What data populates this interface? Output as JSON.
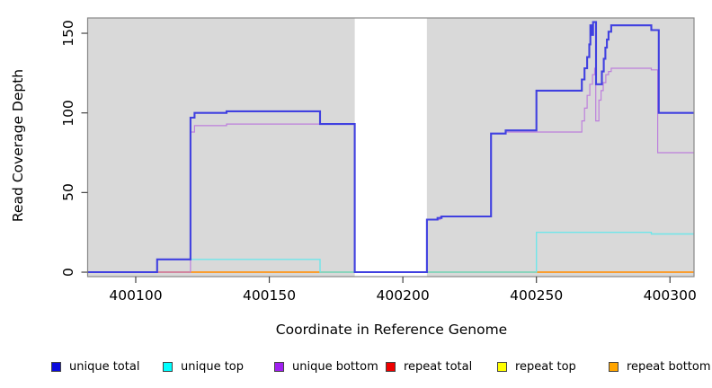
{
  "chart_data": {
    "type": "line",
    "subtype": "step-coverage-plot",
    "title": "",
    "xlabel": "Coordinate in Reference Genome",
    "ylabel": "Read Coverage Depth",
    "xlim": [
      400082,
      400309
    ],
    "ylim": [
      -2.8,
      159.6
    ],
    "x_ticks": [
      400100,
      400150,
      400200,
      400250,
      400300
    ],
    "y_ticks": [
      0,
      50,
      100,
      150
    ],
    "grid": false,
    "plot_bg_color": "#d9d9d9",
    "frame_color": "#888888",
    "tick_color": "#444444",
    "masked_region": {
      "x1": 400182,
      "x2": 400209,
      "color": "#ffffff"
    },
    "series": [
      {
        "name": "repeat total",
        "legend_color": "#ee0000",
        "line_color": "#ee2222",
        "line_width": 1,
        "steps": [
          [
            400082,
            0
          ],
          [
            400309,
            0
          ]
        ]
      },
      {
        "name": "repeat top",
        "legend_color": "#ffff00",
        "line_color": "#f2e522",
        "line_width": 1,
        "steps": [
          [
            400082,
            0
          ],
          [
            400309,
            0
          ]
        ]
      },
      {
        "name": "repeat bottom",
        "legend_color": "#ffa500",
        "line_color": "#ff9517",
        "line_width": 1.8,
        "steps": [
          [
            400082,
            0
          ],
          [
            400309,
            0
          ]
        ]
      },
      {
        "name": "unique top",
        "legend_color": "#00ffff",
        "line_color": "#6fe6ea",
        "line_width": 1.4,
        "steps": [
          [
            400082,
            0
          ],
          [
            400108,
            8
          ],
          [
            400169,
            0
          ],
          [
            400250,
            25
          ],
          [
            400293,
            24
          ],
          [
            400309,
            24
          ]
        ]
      },
      {
        "name": "unique bottom",
        "legend_color": "#a020f0",
        "line_color": "#bd7fdc",
        "line_width": 1.2,
        "steps": [
          [
            400082,
            0
          ],
          [
            400120.5,
            88
          ],
          [
            400122,
            92
          ],
          [
            400134,
            93
          ],
          [
            400182,
            0
          ],
          [
            400209,
            33
          ],
          [
            400214,
            35
          ],
          [
            400233,
            87
          ],
          [
            400238.5,
            88
          ],
          [
            400267,
            95
          ],
          [
            400268,
            103
          ],
          [
            400269,
            111
          ],
          [
            400270,
            118
          ],
          [
            400271,
            124
          ],
          [
            400271.8,
            128
          ],
          [
            400272.2,
            95
          ],
          [
            400273.4,
            108
          ],
          [
            400274.2,
            114
          ],
          [
            400275,
            119
          ],
          [
            400276,
            124
          ],
          [
            400277,
            126
          ],
          [
            400278,
            128
          ],
          [
            400293,
            127
          ],
          [
            400295.4,
            75
          ],
          [
            400309,
            75
          ]
        ]
      },
      {
        "name": "unique total",
        "legend_color": "#0b0bdd",
        "line_color": "#4040e0",
        "line_width": 2.1,
        "steps": [
          [
            400082,
            0
          ],
          [
            400108,
            8
          ],
          [
            400120.5,
            97
          ],
          [
            400122,
            100
          ],
          [
            400134,
            101
          ],
          [
            400169,
            93
          ],
          [
            400182,
            0
          ],
          [
            400209,
            33
          ],
          [
            400213,
            34
          ],
          [
            400214.5,
            35
          ],
          [
            400233,
            87
          ],
          [
            400238.5,
            89
          ],
          [
            400250,
            114
          ],
          [
            400267,
            121
          ],
          [
            400268,
            128
          ],
          [
            400269,
            135
          ],
          [
            400269.8,
            143
          ],
          [
            400270.2,
            155
          ],
          [
            400270.8,
            149
          ],
          [
            400271.2,
            157
          ],
          [
            400272.3,
            118
          ],
          [
            400274.5,
            126
          ],
          [
            400275.2,
            134
          ],
          [
            400275.8,
            141
          ],
          [
            400276.4,
            146
          ],
          [
            400277,
            151
          ],
          [
            400278,
            155
          ],
          [
            400293,
            152
          ],
          [
            400295.8,
            100
          ],
          [
            400309,
            100
          ]
        ]
      }
    ],
    "zero_line_overlap_segments": [
      {
        "x1": 400108,
        "x2": 400120.5,
        "color": "#e0758f"
      },
      {
        "x1": 400169,
        "x2": 400182,
        "color": "#53b365"
      },
      {
        "x1": 400209,
        "x2": 400250,
        "color": "#53b365"
      }
    ]
  },
  "legend": {
    "items": [
      {
        "label": "unique total",
        "color": "#0b0bdd"
      },
      {
        "label": "unique top",
        "color": "#00ffff"
      },
      {
        "label": "unique bottom",
        "color": "#a020f0"
      },
      {
        "label": "repeat total",
        "color": "#ee0000"
      },
      {
        "label": "repeat top",
        "color": "#ffff00"
      },
      {
        "label": "repeat bottom",
        "color": "#ffa500"
      }
    ]
  }
}
